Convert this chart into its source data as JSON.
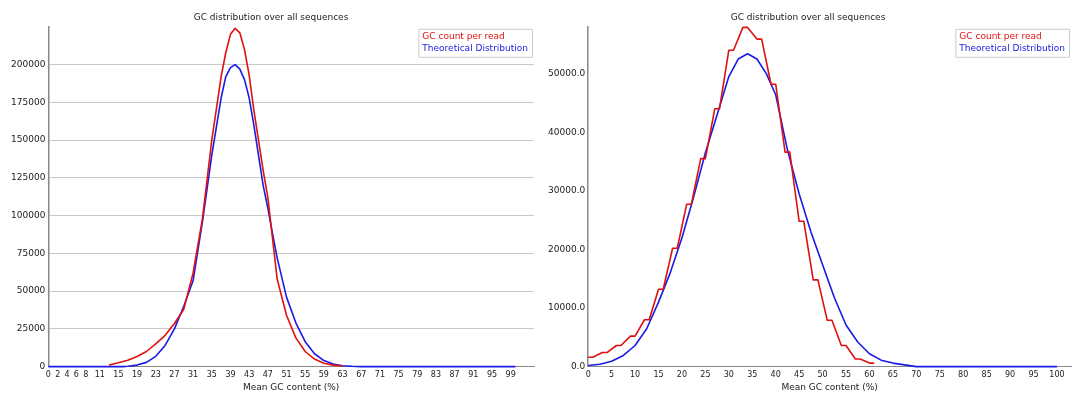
{
  "chart_data": [
    {
      "type": "line",
      "title": "GC distribution over all sequences",
      "xlabel": "Mean GC content (%)",
      "xlim": [
        0,
        104
      ],
      "xticks": [
        0,
        2,
        4,
        6,
        8,
        11,
        15,
        19,
        23,
        27,
        31,
        35,
        39,
        43,
        47,
        51,
        55,
        59,
        63,
        67,
        71,
        75,
        79,
        83,
        87,
        91,
        95,
        99
      ],
      "ylim": [
        0,
        225000
      ],
      "yticks": [
        0,
        25000,
        50000,
        75000,
        100000,
        125000,
        150000,
        175000,
        200000
      ],
      "grid": "y",
      "legend": "top right",
      "marker": "none",
      "series": [
        {
          "name": "GC count per read",
          "color": "#e01010",
          "x": [
            13,
            15,
            17,
            19,
            21,
            23,
            25,
            27,
            29,
            31,
            33,
            35,
            37,
            38,
            39,
            40,
            41,
            42,
            43,
            44,
            45,
            46,
            47,
            48,
            49,
            51,
            53,
            55,
            57,
            59,
            61,
            63
          ],
          "values": [
            1100,
            2500,
            4200,
            6700,
            10000,
            15000,
            20700,
            28500,
            38000,
            62000,
            98000,
            150000,
            192000,
            208000,
            220000,
            224000,
            221000,
            210000,
            193000,
            170000,
            150000,
            130000,
            112000,
            85000,
            58000,
            34000,
            19000,
            10000,
            5000,
            2200,
            1000,
            400
          ]
        },
        {
          "name": "Theoretical Distribution",
          "color": "#1a1ae6",
          "x": [
            0,
            16,
            17,
            19,
            21,
            23,
            25,
            27,
            29,
            31,
            33,
            35,
            37,
            38,
            39,
            40,
            41,
            42,
            43,
            44,
            45,
            46,
            47,
            48,
            49,
            51,
            53,
            55,
            57,
            59,
            61,
            63,
            65,
            67,
            100
          ],
          "values": [
            0,
            0,
            200,
            1000,
            2800,
            6800,
            14000,
            25000,
            40000,
            57000,
            96000,
            140000,
            178000,
            192000,
            198000,
            200000,
            197000,
            190000,
            178000,
            160000,
            140000,
            120000,
            105000,
            88000,
            72000,
            46000,
            29000,
            16500,
            8500,
            4000,
            1700,
            600,
            200,
            0,
            0
          ]
        }
      ]
    },
    {
      "type": "line",
      "title": "GC distribution over all sequences",
      "xlabel": "Mean GC content (%)",
      "xlim": [
        0,
        103
      ],
      "xticks": [
        0,
        5,
        10,
        15,
        20,
        25,
        30,
        35,
        40,
        45,
        50,
        55,
        60,
        65,
        70,
        75,
        80,
        85,
        90,
        95,
        100
      ],
      "ylim": [
        0,
        58000
      ],
      "yticks": [
        {
          "value": 0,
          "label": "0.0"
        },
        {
          "value": 10000,
          "label": "10000.0"
        },
        {
          "value": 20000,
          "label": "20000.0"
        },
        {
          "value": 30000,
          "label": "30000.0"
        },
        {
          "value": 40000,
          "label": "40000.0"
        },
        {
          "value": 50000,
          "label": "50000.0"
        }
      ],
      "grid": false,
      "legend": "top right",
      "marker": "none",
      "series": [
        {
          "name": "GC count per read",
          "color": "#e01010",
          "x": [
            0,
            1,
            3,
            4,
            6,
            7,
            9,
            10,
            12,
            13,
            15,
            16,
            18,
            19,
            21,
            22,
            24,
            25,
            27,
            28,
            30,
            31,
            33,
            34,
            36,
            37,
            39,
            40,
            42,
            43,
            45,
            46,
            48,
            49,
            51,
            52,
            54,
            55,
            57,
            58,
            60,
            61
          ],
          "values": [
            1600,
            1600,
            2400,
            2400,
            3600,
            3600,
            5200,
            5200,
            8000,
            8000,
            13200,
            13200,
            20200,
            20200,
            27700,
            27700,
            35500,
            35500,
            44000,
            44000,
            54000,
            54000,
            57900,
            57900,
            55900,
            55900,
            48200,
            48200,
            36600,
            36600,
            24800,
            24800,
            14800,
            14800,
            7900,
            7900,
            3600,
            3600,
            1300,
            1300,
            600,
            600
          ]
        },
        {
          "name": "Theoretical Distribution",
          "color": "#1a1ae6",
          "x": [
            0,
            2.5,
            5,
            7.5,
            10,
            12.5,
            15,
            17.5,
            20,
            22.5,
            25,
            27.5,
            30,
            32,
            34,
            36,
            38,
            40,
            42.5,
            45,
            47.5,
            50,
            52.5,
            55,
            57.5,
            60,
            62.5,
            65,
            67.5,
            70,
            100
          ],
          "values": [
            200,
            400,
            900,
            1900,
            3600,
            6500,
            11000,
            16000,
            22000,
            29000,
            36500,
            43000,
            49500,
            52500,
            53400,
            52500,
            50000,
            46400,
            37000,
            29500,
            23000,
            17400,
            11800,
            7100,
            4200,
            2200,
            1100,
            600,
            300,
            0,
            0
          ]
        }
      ]
    }
  ]
}
